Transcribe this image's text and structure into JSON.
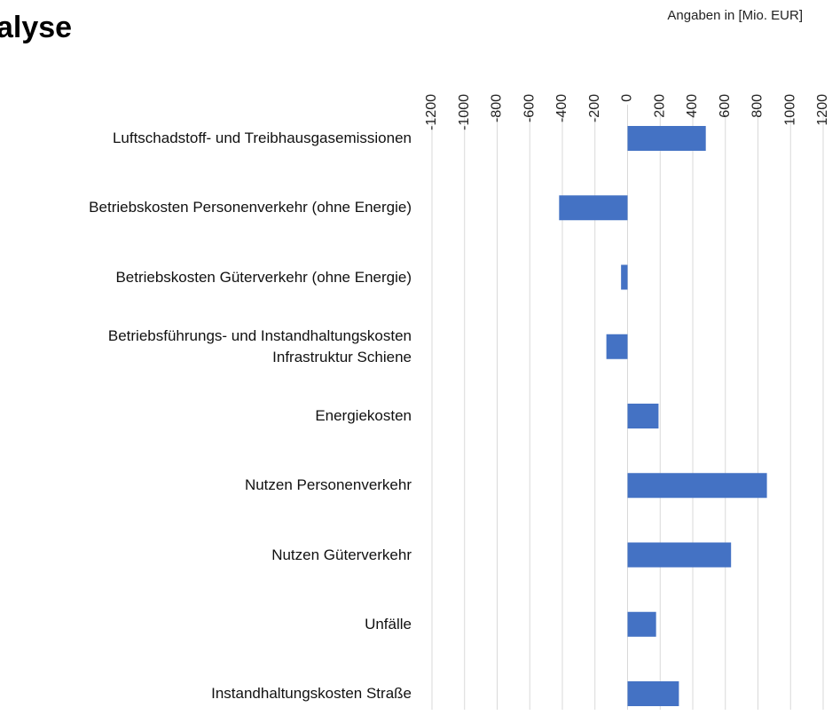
{
  "chart_data": {
    "type": "hbar",
    "title": "alyse",
    "unit_label": "Angaben in [Mio. EUR]",
    "categories": [
      "Luftschadstoff- und Treibhausgasemissionen",
      "Betriebskosten Personenverkehr (ohne Energie)",
      "Betriebskosten Güterverkehr (ohne Energie)",
      "Betriebsführungs- und Instandhaltungskosten\nInfrastruktur Schiene",
      "Energiekosten",
      "Nutzen Personenverkehr",
      "Nutzen Güterverkehr",
      "Unfälle",
      "Instandhaltungskosten Straße"
    ],
    "values": [
      480,
      -420,
      -40,
      -130,
      190,
      855,
      635,
      175,
      315
    ],
    "color": "#4472c4",
    "xlim": [
      -1200,
      1200
    ],
    "xticks": [
      -1200,
      -1000,
      -800,
      -600,
      -400,
      -200,
      0,
      200,
      400,
      600,
      800,
      1000,
      1200
    ],
    "grid": true
  }
}
